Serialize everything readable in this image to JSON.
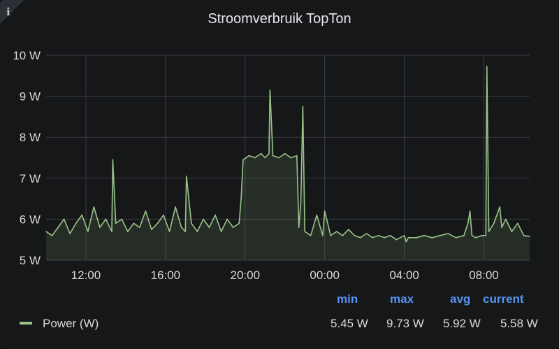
{
  "panel": {
    "title": "Stroomverbruik TopTon",
    "info_icon": "info-icon",
    "colors": {
      "background": "#161719",
      "grid": "#3a3d42",
      "series": "#9ac48a",
      "fill": "rgba(154,196,138,0.12)",
      "legend_header": "#5794f2"
    }
  },
  "chart_data": {
    "type": "area",
    "title": "Stroomverbruik TopTon",
    "xlabel": "",
    "ylabel": "",
    "ylim": [
      5,
      10
    ],
    "y_ticks": [
      "5 W",
      "6 W",
      "7 W",
      "8 W",
      "9 W",
      "10 W"
    ],
    "x_ticks": [
      "12:00",
      "16:00",
      "20:00",
      "00:00",
      "04:00",
      "08:00"
    ],
    "x_tick_hours": [
      12,
      16,
      20,
      24,
      28,
      32
    ],
    "xlim_hours": [
      10.0,
      34.3
    ],
    "grid": true,
    "legend_position": "bottom",
    "series": [
      {
        "name": "Power (W)",
        "color": "#9ac48a",
        "x_hours": [
          10.0,
          10.3,
          10.6,
          10.9,
          11.2,
          11.5,
          11.8,
          12.1,
          12.4,
          12.7,
          13.0,
          13.3,
          13.35,
          13.5,
          13.8,
          14.1,
          14.4,
          14.7,
          15.0,
          15.3,
          15.6,
          15.9,
          16.2,
          16.5,
          16.8,
          17.0,
          17.05,
          17.3,
          17.6,
          17.9,
          18.2,
          18.5,
          18.8,
          19.1,
          19.4,
          19.7,
          19.8,
          19.9,
          20.2,
          20.5,
          20.8,
          21.0,
          21.2,
          21.25,
          21.4,
          21.7,
          22.0,
          22.3,
          22.6,
          22.7,
          22.8,
          22.9,
          23.0,
          23.3,
          23.6,
          23.9,
          24.0,
          24.3,
          24.6,
          24.9,
          25.2,
          25.5,
          25.8,
          26.1,
          26.4,
          26.7,
          27.0,
          27.3,
          27.6,
          28.0,
          28.1,
          28.2,
          28.6,
          29.0,
          29.4,
          29.8,
          30.2,
          30.6,
          31.0,
          31.2,
          31.3,
          31.4,
          31.6,
          31.9,
          32.1,
          32.15,
          32.25,
          32.5,
          32.8,
          32.9,
          33.1,
          33.4,
          33.7,
          34.0,
          34.3
        ],
        "values": [
          5.7,
          5.6,
          5.8,
          6.0,
          5.65,
          5.9,
          6.1,
          5.7,
          6.3,
          5.8,
          6.0,
          5.7,
          7.45,
          5.9,
          6.0,
          5.7,
          5.9,
          5.8,
          6.2,
          5.75,
          5.9,
          6.1,
          5.7,
          6.3,
          5.8,
          5.7,
          7.05,
          5.9,
          5.7,
          6.0,
          5.8,
          6.1,
          5.7,
          6.0,
          5.8,
          5.9,
          6.5,
          7.45,
          7.55,
          7.5,
          7.6,
          7.5,
          7.6,
          9.15,
          7.55,
          7.5,
          7.6,
          7.5,
          7.55,
          5.8,
          6.4,
          8.75,
          5.7,
          5.6,
          6.1,
          5.6,
          6.2,
          5.6,
          5.7,
          5.6,
          5.75,
          5.6,
          5.55,
          5.65,
          5.55,
          5.6,
          5.55,
          5.6,
          5.5,
          5.6,
          5.45,
          5.55,
          5.55,
          5.6,
          5.55,
          5.6,
          5.65,
          5.55,
          5.6,
          5.9,
          6.2,
          5.6,
          5.55,
          5.6,
          5.6,
          9.73,
          5.7,
          5.9,
          6.3,
          5.8,
          6.0,
          5.7,
          5.9,
          5.6,
          5.58
        ]
      }
    ],
    "legend": {
      "headers": {
        "min": "min",
        "max": "max",
        "avg": "avg",
        "current": "current"
      },
      "rows": [
        {
          "name": "Power (W)",
          "min": "5.45 W",
          "max": "9.73 W",
          "avg": "5.92 W",
          "current": "5.58 W"
        }
      ]
    }
  }
}
